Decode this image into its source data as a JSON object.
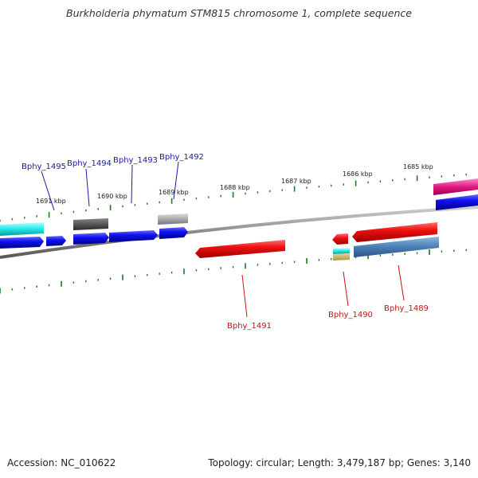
{
  "title": "Burkholderia phymatum STM815 chromosome 1, complete sequence",
  "footer": {
    "accession": "Accession: NC_010622",
    "summary": "Topology: circular; Length: 3,479,187 bp; Genes: 3,140"
  },
  "colors": {
    "plus_label": "#1a1aaa",
    "minus_label": "#cc1111",
    "tick": "#1f7a1f",
    "backbone": "#8a8a8a"
  },
  "ticks": [
    "1691 kbp",
    "1690 kbp",
    "1689 kbp",
    "1688 kbp",
    "1687 kbp",
    "1686 kbp",
    "1685 kbp"
  ],
  "genes": [
    {
      "label": "Bphy_1495",
      "strand": "plus"
    },
    {
      "label": "Bphy_1494",
      "strand": "plus"
    },
    {
      "label": "Bphy_1493",
      "strand": "plus"
    },
    {
      "label": "Bphy_1492",
      "strand": "plus"
    },
    {
      "label": "Bphy_1491",
      "strand": "minus"
    },
    {
      "label": "Bphy_1490",
      "strand": "minus"
    },
    {
      "label": "Bphy_1489",
      "strand": "minus"
    }
  ]
}
